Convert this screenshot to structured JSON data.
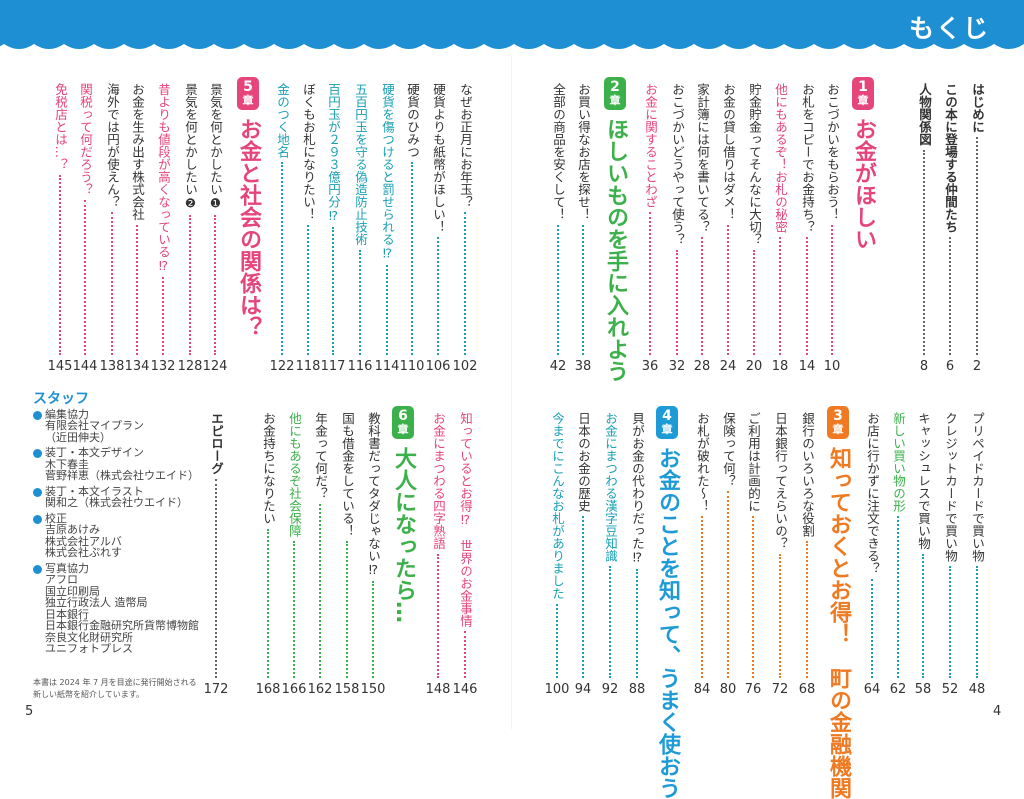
{
  "header": {
    "title": "もくじ",
    "color": "#1e8fd2"
  },
  "colors": {
    "text": "#333333",
    "pink": "#e5457a",
    "teal": "#1aa0b5",
    "green": "#3cb04a",
    "orange": "#ef7a22",
    "blue": "#1e9bd7",
    "gray": "#666666"
  },
  "top_right": [
    {
      "text": "はじめに",
      "page": "2",
      "color": "text",
      "bold": true,
      "lead": "gray"
    },
    {
      "text": "この本に登場する仲間たち",
      "page": "6",
      "color": "text",
      "bold": true,
      "lead": "gray"
    },
    {
      "text": "人物関係図",
      "page": "8",
      "color": "text",
      "bold": true,
      "lead": "gray"
    },
    {
      "chapter": true,
      "number": "1",
      "label": "章",
      "title": "お金がほしい",
      "color": "pink"
    },
    {
      "text": "おこづかいをもらおう！",
      "page": "10",
      "color": "text",
      "lead": "pink"
    },
    {
      "text": "お札をコピーでお金持ち？",
      "page": "14",
      "color": "text",
      "lead": "pink"
    },
    {
      "text": "他にもあるぞ！お札の秘密",
      "page": "18",
      "color": "pink",
      "lead": "pink"
    },
    {
      "text": "貯金貯金ってそんなに大切？",
      "page": "20",
      "color": "text",
      "lead": "pink"
    },
    {
      "text": "お金の貸し借りはダメ！",
      "page": "24",
      "color": "text",
      "lead": "pink"
    },
    {
      "text": "家計簿には何を書いてる？",
      "page": "28",
      "color": "text",
      "lead": "pink"
    },
    {
      "text": "おこづかいどうやって使う？",
      "page": "32",
      "color": "text",
      "lead": "pink"
    },
    {
      "text": "お金に関することわざ",
      "page": "36",
      "color": "pink",
      "lead": "pink"
    },
    {
      "chapter": true,
      "number": "2",
      "label": "章",
      "title": "ほしいものを手に入れよう",
      "color": "green"
    },
    {
      "text": "お買い得なお店を探せ！",
      "page": "38",
      "color": "text",
      "lead": "teal"
    },
    {
      "text": "全部の商品を安くして！",
      "page": "42",
      "color": "text",
      "lead": "teal"
    }
  ],
  "top_left": [
    {
      "text": "なぜお正月にお年玉？",
      "page": "102",
      "color": "text",
      "lead": "teal"
    },
    {
      "text": "硬貨よりも紙幣がほしい！",
      "page": "106",
      "color": "text",
      "lead": "teal"
    },
    {
      "text": "硬貨のひみつ",
      "page": "110",
      "color": "text",
      "lead": "teal"
    },
    {
      "text": "硬貨を傷つけると罰せられる⁉",
      "page": "114",
      "color": "teal",
      "lead": "teal"
    },
    {
      "text": "五百円玉を守る偽造防止技術",
      "page": "116",
      "color": "teal",
      "lead": "teal"
    },
    {
      "text": "百円玉が２９３億円分⁉",
      "page": "117",
      "color": "teal",
      "lead": "teal"
    },
    {
      "text": "ぼくもお札になりたい！",
      "page": "118",
      "color": "text",
      "lead": "teal"
    },
    {
      "text": "金のつく地名",
      "page": "122",
      "color": "teal",
      "lead": "teal"
    },
    {
      "chapter": true,
      "number": "5",
      "label": "章",
      "title": "お金と社会の関係は？",
      "color": "pink"
    },
    {
      "text": "景気を何とかしたい❶",
      "page": "124",
      "color": "text",
      "lead": "pink"
    },
    {
      "text": "景気を何とかしたい❷",
      "page": "128",
      "color": "text",
      "lead": "pink"
    },
    {
      "text": "昔よりも値段が高くなっている⁉",
      "page": "132",
      "color": "pink",
      "lead": "pink"
    },
    {
      "text": "お金を生み出す株式会社",
      "page": "134",
      "color": "text",
      "lead": "pink"
    },
    {
      "text": "海外では円が使えん？",
      "page": "138",
      "color": "text",
      "lead": "pink"
    },
    {
      "text": "関税って何だろう？",
      "page": "144",
      "color": "pink",
      "lead": "pink"
    },
    {
      "text": "免税店とは…？",
      "page": "145",
      "color": "pink",
      "lead": "pink"
    }
  ],
  "bottom_right": [
    {
      "text": "プリペイドカードで買い物",
      "page": "48",
      "color": "text",
      "lead": "teal"
    },
    {
      "text": "クレジットカードで買い物",
      "page": "52",
      "color": "text",
      "lead": "teal"
    },
    {
      "text": "キャッシュレスで買い物",
      "page": "58",
      "color": "text",
      "lead": "teal"
    },
    {
      "text": "新しい買い物の形",
      "page": "62",
      "color": "green",
      "lead": "teal"
    },
    {
      "text": "お店に行かずに注文できる？",
      "page": "64",
      "color": "text",
      "lead": "teal"
    },
    {
      "chapter": true,
      "number": "3",
      "label": "章",
      "title": "知っておくとお得！　町の金融機関",
      "color": "orange"
    },
    {
      "text": "銀行のいろいろな役割",
      "page": "68",
      "color": "text",
      "lead": "orange"
    },
    {
      "text": "日本銀行ってえらいの？",
      "page": "72",
      "color": "text",
      "lead": "orange"
    },
    {
      "text": "ご利用は計画的に",
      "page": "76",
      "color": "text",
      "lead": "orange"
    },
    {
      "text": "保険って何？",
      "page": "80",
      "color": "text",
      "lead": "orange"
    },
    {
      "text": "お札が破れた～！",
      "page": "84",
      "color": "text",
      "lead": "orange"
    },
    {
      "chapter": true,
      "number": "4",
      "label": "章",
      "title": "お金のことを知って、うまく使おう",
      "color": "blue"
    },
    {
      "text": "貝がお金の代わりだった⁉",
      "page": "88",
      "color": "text",
      "lead": "teal"
    },
    {
      "text": "お金にまつわる漢字豆知識",
      "page": "92",
      "color": "teal",
      "lead": "teal"
    },
    {
      "text": "日本のお金の歴史",
      "page": "94",
      "color": "text",
      "lead": "teal"
    },
    {
      "text": "今までにこんなお札がありました",
      "page": "100",
      "color": "teal",
      "lead": "teal"
    }
  ],
  "bottom_left": [
    {
      "text": "知っているとお得⁉　世界のお金事情",
      "page": "146",
      "color": "pink",
      "lead": "pink"
    },
    {
      "text": "お金にまつわる四字熟語",
      "page": "148",
      "color": "pink",
      "lead": "pink"
    },
    {
      "chapter": true,
      "number": "6",
      "label": "章",
      "title": "大人になったら…",
      "color": "green"
    },
    {
      "text": "教科書だってタダじゃない⁉",
      "page": "150",
      "color": "text",
      "lead": "green"
    },
    {
      "text": "国も借金をしている！",
      "page": "158",
      "color": "text",
      "lead": "green"
    },
    {
      "text": "年金って何だ？",
      "page": "162",
      "color": "text",
      "lead": "green"
    },
    {
      "text": "他にもあるぞ社会保障",
      "page": "166",
      "color": "green",
      "lead": "green"
    },
    {
      "text": "お金持ちになりたい",
      "page": "168",
      "color": "text",
      "lead": "green"
    },
    {
      "text": "エピローグ",
      "page": "172",
      "color": "text",
      "bold": true,
      "lead": "gray"
    }
  ],
  "staff": {
    "heading": "スタッフ",
    "groups": [
      {
        "title": "編集協力",
        "lines": [
          "有限会社マイプラン",
          "（近田伸夫）"
        ]
      },
      {
        "title": "装丁・本文デザイン",
        "lines": [
          "木下春圭",
          "菅野祥恵（株式会社ウエイド）"
        ]
      },
      {
        "title": "装丁・本文イラスト",
        "lines": [
          "関和之（株式会社ウエイド）"
        ]
      },
      {
        "title": "校正",
        "lines": [
          "吉原あけみ",
          "株式会社アルバ",
          "株式会社ぷれす"
        ]
      },
      {
        "title": "写真協力",
        "lines": [
          "アフロ",
          "国立印刷局",
          "独立行政法人 造幣局",
          "日本銀行",
          "日本銀行金融研究所貨幣博物館",
          "奈良文化財研究所",
          "ユニフォトプレス"
        ]
      }
    ],
    "note": "本書は 2024 年 7 月を目途に発行開始される新しい紙幣を紹介しています。"
  },
  "page_numbers": {
    "left": "5",
    "right": "4"
  }
}
